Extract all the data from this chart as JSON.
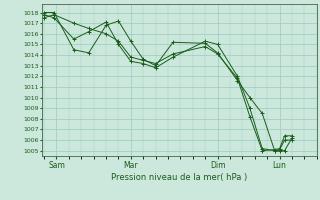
{
  "bg_color": "#cce8dd",
  "grid_color": "#99ccbb",
  "line_color": "#1a5c1a",
  "marker_color": "#1a5c1a",
  "xlabel": "Pression niveau de la mer( hPa )",
  "ylim": [
    1004.5,
    1018.8
  ],
  "yticks": [
    1005,
    1006,
    1007,
    1008,
    1009,
    1010,
    1011,
    1012,
    1013,
    1014,
    1015,
    1016,
    1017,
    1018
  ],
  "x_tick_labels": [
    "Sam",
    "Mar",
    "Dim",
    "Lun"
  ],
  "x_tick_positions": [
    0.5,
    3.5,
    7.0,
    9.5
  ],
  "xlim": [
    -0.1,
    11.0
  ],
  "series": [
    [
      1018.0,
      1018.0,
      1014.5,
      1014.2,
      1016.8,
      1017.2,
      1015.3,
      1013.6,
      1013.0,
      1015.2,
      1015.1,
      1014.2,
      1011.6,
      1010.0,
      1008.5,
      1005.0,
      1005.0,
      1005.0,
      1006.2
    ],
    [
      1017.8,
      1017.5,
      1015.5,
      1016.2,
      1017.1,
      1015.0,
      1013.4,
      1013.2,
      1012.8,
      1013.8,
      1015.3,
      1015.0,
      1012.0,
      1009.0,
      1005.2,
      1005.0,
      1005.1,
      1006.0,
      1006.0
    ],
    [
      1017.5,
      1017.8,
      1017.0,
      1016.5,
      1016.0,
      1015.3,
      1013.8,
      1013.5,
      1013.2,
      1014.1,
      1014.8,
      1014.1,
      1011.8,
      1008.2,
      1005.0,
      1005.1,
      1005.2,
      1006.4,
      1006.4
    ]
  ],
  "x_values": [
    0.0,
    0.4,
    1.2,
    1.8,
    2.5,
    3.0,
    3.5,
    4.0,
    4.5,
    5.2,
    6.5,
    7.0,
    7.8,
    8.3,
    8.8,
    9.3,
    9.5,
    9.7,
    10.0
  ]
}
